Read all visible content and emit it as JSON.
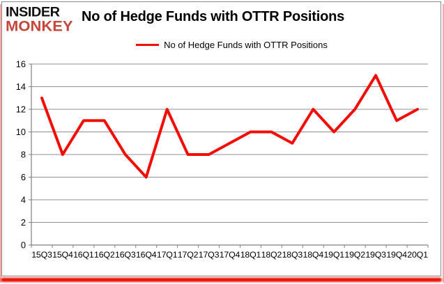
{
  "logo": {
    "line1": "INSIDER",
    "line2": "MONKEY"
  },
  "header": {
    "title": "No of Hedge Funds with OTTR Positions"
  },
  "legend": {
    "label": "No of Hedge Funds with OTTR Positions"
  },
  "colors": {
    "line": "#f20d05",
    "logo_monkey": "#c5463a",
    "logo_insider": "#111111",
    "gridline": "#909090",
    "axis": "#7f7f7f",
    "chart_border": "#8c8c8c",
    "frame_pink": "#f6aba6",
    "bottom_glow": "#e90d00",
    "text": "#000000"
  },
  "chart_data": {
    "type": "line",
    "title": "No of Hedge Funds with OTTR Positions",
    "categories": [
      "15Q3",
      "15Q4",
      "16Q1",
      "16Q2",
      "16Q3",
      "16Q4",
      "17Q1",
      "17Q2",
      "17Q3",
      "17Q4",
      "18Q1",
      "18Q2",
      "18Q3",
      "18Q4",
      "19Q1",
      "19Q2",
      "19Q3",
      "19Q4",
      "20Q1"
    ],
    "series": [
      {
        "name": "No of Hedge Funds with OTTR Positions",
        "values": [
          13,
          8,
          11,
          11,
          8,
          6,
          12,
          8,
          8,
          9,
          10,
          10,
          9,
          12,
          10,
          12,
          15,
          11,
          12
        ]
      }
    ],
    "xlabel": "",
    "ylabel": "",
    "ylim": [
      0,
      16
    ],
    "ytick_step": 2,
    "grid": true,
    "legend_position": "top-center"
  }
}
